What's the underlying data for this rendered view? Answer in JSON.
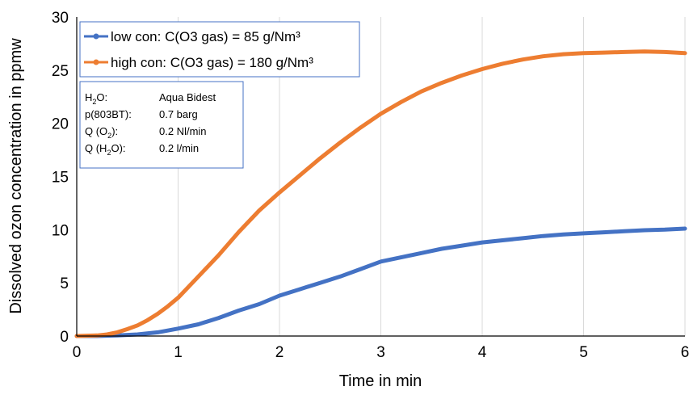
{
  "chart_data": {
    "type": "line",
    "title": "",
    "xlabel": "Time in min",
    "ylabel": "Dissolved ozon concentration in ppmw",
    "xlim": [
      0,
      6
    ],
    "ylim": [
      0,
      30
    ],
    "xticks": [
      "0",
      "1",
      "2",
      "3",
      "4",
      "5",
      "6"
    ],
    "yticks": [
      "0",
      "5",
      "10",
      "15",
      "20",
      "25",
      "30"
    ],
    "grid": "vertical",
    "legend_position": "top-left",
    "series": [
      {
        "name": "low con: C(O3 gas) = 85 g/Nm³",
        "color": "#4472C4",
        "x": [
          0,
          0.2,
          0.4,
          0.6,
          0.8,
          1.0,
          1.2,
          1.4,
          1.6,
          1.8,
          2.0,
          2.2,
          2.4,
          2.6,
          2.8,
          3.0,
          3.2,
          3.4,
          3.6,
          3.8,
          4.0,
          4.2,
          4.4,
          4.6,
          4.8,
          5.0,
          5.2,
          5.4,
          5.6,
          5.8,
          6.0
        ],
        "y": [
          0,
          0,
          0.05,
          0.15,
          0.35,
          0.7,
          1.1,
          1.7,
          2.4,
          3.0,
          3.8,
          4.4,
          5.0,
          5.6,
          6.3,
          7.0,
          7.4,
          7.8,
          8.2,
          8.5,
          8.8,
          9.0,
          9.2,
          9.4,
          9.55,
          9.65,
          9.75,
          9.85,
          9.95,
          10.0,
          10.1
        ]
      },
      {
        "name": "high con: C(O3 gas) = 180 g/Nm³",
        "color": "#ED7D31",
        "x": [
          0,
          0.2,
          0.3,
          0.4,
          0.5,
          0.6,
          0.7,
          0.8,
          0.9,
          1.0,
          1.2,
          1.4,
          1.6,
          1.8,
          2.0,
          2.2,
          2.4,
          2.6,
          2.8,
          3.0,
          3.2,
          3.4,
          3.6,
          3.8,
          4.0,
          4.2,
          4.4,
          4.6,
          4.8,
          5.0,
          5.2,
          5.4,
          5.6,
          5.8,
          6.0
        ],
        "y": [
          0,
          0.05,
          0.15,
          0.35,
          0.65,
          1.0,
          1.5,
          2.1,
          2.8,
          3.6,
          5.6,
          7.6,
          9.8,
          11.8,
          13.5,
          15.1,
          16.7,
          18.2,
          19.6,
          20.9,
          22.0,
          23.0,
          23.8,
          24.5,
          25.1,
          25.6,
          26.0,
          26.3,
          26.5,
          26.6,
          26.65,
          26.7,
          26.75,
          26.7,
          26.6
        ]
      }
    ]
  },
  "info_box": {
    "rows": [
      {
        "label_main": "H",
        "label_sub": "2",
        "label_tail": "O:",
        "value": "Aqua Bidest"
      },
      {
        "label_main": "p(803BT):",
        "label_sub": "",
        "label_tail": "",
        "value": "0.7 barg"
      },
      {
        "label_main": "Q (O",
        "label_sub": "2",
        "label_tail": "):",
        "value": "0.2 Nl/min"
      },
      {
        "label_main": "Q (H",
        "label_sub": "2",
        "label_tail": "O):",
        "value": "0.2 l/min"
      }
    ]
  }
}
